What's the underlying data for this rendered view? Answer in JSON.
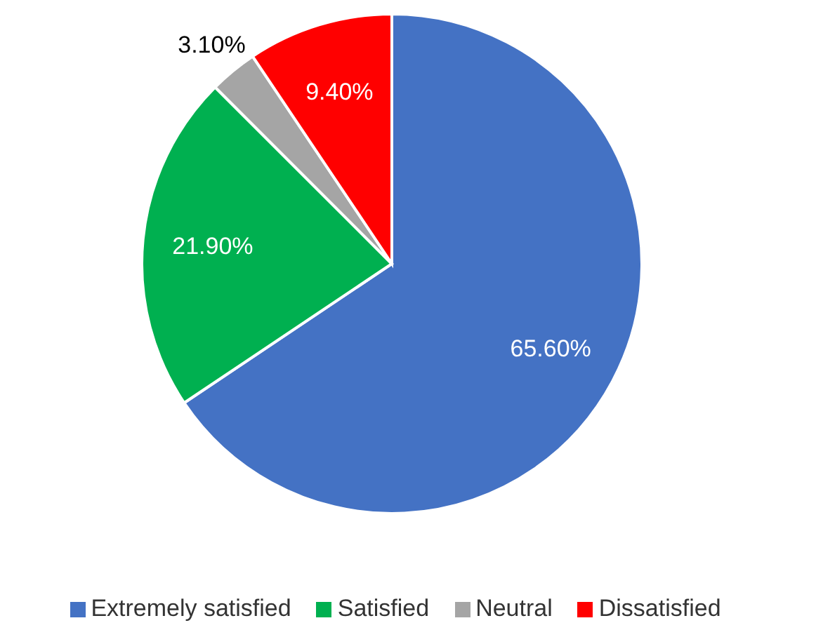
{
  "chart_data": {
    "type": "pie",
    "categories": [
      "Extremely satisfied",
      "Satisfied",
      "Neutral",
      "Dissatisfied"
    ],
    "values": [
      65.6,
      21.9,
      3.1,
      9.4
    ],
    "colors": [
      "#4472c4",
      "#00b050",
      "#a5a5a5",
      "#ff0000"
    ],
    "value_labels": [
      "65.60%",
      "21.90%",
      "3.10%",
      "9.40%"
    ],
    "legend": "bottom"
  }
}
